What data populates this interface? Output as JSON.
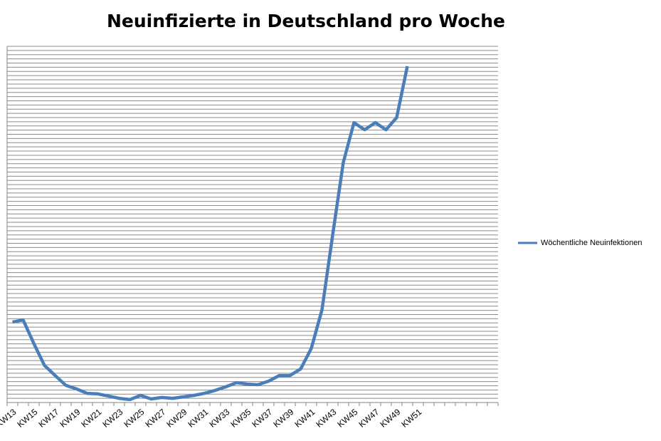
{
  "chart_data": {
    "type": "line",
    "title": "Neuinfizierte in Deutschland pro Woche",
    "categories": [
      "KW13",
      null,
      "KW15",
      null,
      "KW17",
      null,
      "KW19",
      null,
      "KW21",
      null,
      "KW23",
      null,
      "KW25",
      null,
      "KW27",
      null,
      "KW29",
      null,
      "KW31",
      null,
      "KW33",
      null,
      "KW35",
      null,
      "KW37",
      null,
      "KW39",
      null,
      "KW41",
      null,
      "KW43",
      null,
      "KW45",
      null,
      "KW47",
      null,
      "KW49",
      null,
      "KW51",
      null,
      null,
      null,
      null,
      null,
      null,
      null
    ],
    "series": [
      {
        "name": "Wöchentliche Neuinfektionen",
        "color": "#4a7ebb",
        "values": [
          38400,
          39400,
          28200,
          17700,
          12900,
          8200,
          6500,
          4400,
          4100,
          3100,
          2000,
          1400,
          3400,
          1700,
          2400,
          2000,
          2700,
          3400,
          4400,
          5800,
          7500,
          9500,
          8800,
          8500,
          10200,
          12900,
          12900,
          16000,
          25800,
          44200,
          79900,
          114600,
          133600,
          130200,
          133600,
          130200,
          136000,
          160500,
          null,
          null,
          null,
          null,
          null,
          null,
          null,
          null
        ]
      }
    ],
    "ylim": [
      0,
      170000
    ],
    "yticks": [
      0,
      2000,
      4000,
      6000,
      8000,
      10000,
      12000,
      14000,
      16000,
      18000,
      20000,
      22000,
      24000,
      26000,
      28000,
      30000,
      32000,
      34000,
      36000,
      38000,
      40000,
      42000,
      44000,
      46000,
      48000,
      50000,
      52000,
      54000,
      56000,
      58000,
      60000,
      62000,
      64000,
      66000,
      68000,
      70000,
      72000,
      74000,
      76000,
      78000,
      80000,
      82000,
      84000,
      86000,
      88000,
      90000,
      92000,
      94000,
      96000,
      98000,
      100000,
      102000,
      104000,
      106000,
      108000,
      110000,
      112000,
      114000,
      116000,
      118000,
      120000,
      122000,
      124000,
      126000,
      128000,
      130000,
      132000,
      134000,
      136000,
      138000,
      140000,
      142000,
      144000,
      146000,
      148000,
      150000,
      152000,
      154000,
      156000,
      158000,
      160000,
      162000,
      164000,
      166000,
      168000,
      170000
    ],
    "grid": true,
    "legend": "right"
  }
}
